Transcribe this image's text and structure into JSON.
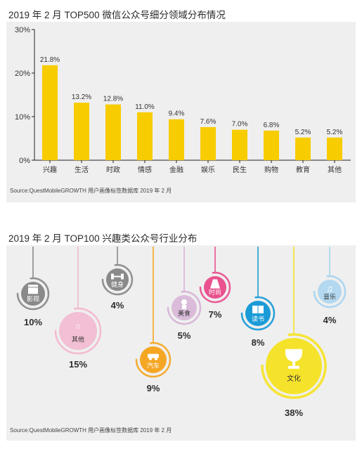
{
  "chart_data": [
    {
      "type": "bar",
      "title": "2019 年 2 月 TOP500 微信公众号细分领域分布情况",
      "categories": [
        "兴趣",
        "生活",
        "时政",
        "情感",
        "金融",
        "娱乐",
        "民生",
        "购物",
        "教育",
        "其他"
      ],
      "values": [
        21.8,
        13.2,
        12.8,
        11.0,
        9.4,
        7.6,
        7.0,
        6.8,
        5.2,
        5.2
      ],
      "value_labels": [
        "21.8%",
        "13.2%",
        "12.8%",
        "11.0%",
        "9.4%",
        "7.6%",
        "7.0%",
        "6.8%",
        "5.2%",
        "5.2%"
      ],
      "yticks": [
        "0%",
        "10%",
        "20%",
        "30%"
      ],
      "ylim": [
        0,
        30
      ],
      "unit": "%",
      "bar_color": "#f7cc00",
      "grid": false,
      "source": "Source:QuestMobileGROWTH 用户画像标签数据库 2019 年 2 月"
    },
    {
      "type": "bubble",
      "title": "2019 年 2 月 TOP100 兴趣类公众号行业分布",
      "items": [
        {
          "label": "影视",
          "value": 10,
          "value_label": "10%",
          "color": "#8a8a8a",
          "icon": "film-clapper-icon"
        },
        {
          "label": "其他",
          "value": 15,
          "value_label": "15%",
          "color": "#f3b6cf",
          "icon": "sun-icon"
        },
        {
          "label": "健身",
          "value": 4,
          "value_label": "4%",
          "color": "#8a8a8a",
          "icon": "dumbbell-icon"
        },
        {
          "label": "汽车",
          "value": 9,
          "value_label": "9%",
          "color": "#f5a623",
          "icon": "car-icon"
        },
        {
          "label": "美食",
          "value": 5,
          "value_label": "5%",
          "color": "#d6b3d6",
          "icon": "chef-icon"
        },
        {
          "label": "时尚",
          "value": 7,
          "value_label": "7%",
          "color": "#e9528f",
          "icon": "dress-icon"
        },
        {
          "label": "读书",
          "value": 8,
          "value_label": "8%",
          "color": "#1a9bd7",
          "icon": "book-icon"
        },
        {
          "label": "文化",
          "value": 38,
          "value_label": "38%",
          "color": "#f5e32b",
          "icon": "trophy-icon"
        },
        {
          "label": "音乐",
          "value": 4,
          "value_label": "4%",
          "color": "#a8d4ee",
          "icon": "music-note-icon"
        }
      ],
      "source": "Source:QuestMobileGROWTH 用户画像标签数据库 2019 年 2 月"
    }
  ]
}
